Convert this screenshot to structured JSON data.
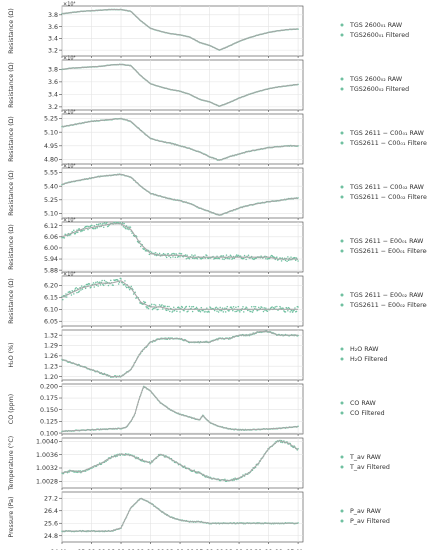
{
  "chart_data": {
    "type": "line",
    "x_ticks": [
      "04-May",
      "03:00:00",
      "06:00:00",
      "09:00:00",
      "12:00:00",
      "15:00:00",
      "18:00:00",
      "21:00:00",
      "05-May"
    ],
    "x_sublabel": "May 2018",
    "colors": {
      "raw": "#6fc0a0",
      "filtered": "#a8a8a8"
    },
    "panels": [
      {
        "ylabel": "Resistance (Ω)",
        "exponent": "×10⁴",
        "yticks": [
          "3.2",
          "3.4",
          "3.6",
          "3.8"
        ],
        "ylim": [
          3.1,
          3.95
        ],
        "legend": [
          "TGS 2600₀₁ RAW",
          "TGS2600₀₁ Filtered"
        ],
        "noise": 0.003,
        "series_x": [
          0,
          1,
          2,
          3,
          4,
          5,
          6,
          7,
          8,
          9,
          10,
          11,
          12,
          13,
          14,
          15,
          16,
          17,
          18,
          19,
          20,
          21,
          22,
          23,
          24
        ],
        "series_y": [
          3.82,
          3.84,
          3.86,
          3.87,
          3.88,
          3.89,
          3.89,
          3.86,
          3.7,
          3.57,
          3.52,
          3.48,
          3.46,
          3.42,
          3.33,
          3.28,
          3.2,
          3.27,
          3.35,
          3.41,
          3.46,
          3.5,
          3.53,
          3.55,
          3.56
        ]
      },
      {
        "ylabel": "Resistance (Ω)",
        "exponent": "×10⁴",
        "yticks": [
          "3.2",
          "3.4",
          "3.6",
          "3.8"
        ],
        "ylim": [
          3.15,
          3.95
        ],
        "legend": [
          "TGS 2600₀₂ RAW",
          "TGS2600₀₂ Filtered"
        ],
        "noise": 0.003,
        "series_x": [
          0,
          1,
          2,
          3,
          4,
          5,
          6,
          7,
          8,
          9,
          10,
          11,
          12,
          13,
          14,
          15,
          16,
          17,
          18,
          19,
          20,
          21,
          22,
          23,
          24
        ],
        "series_y": [
          3.8,
          3.82,
          3.83,
          3.84,
          3.85,
          3.87,
          3.88,
          3.86,
          3.7,
          3.57,
          3.52,
          3.48,
          3.45,
          3.4,
          3.32,
          3.28,
          3.21,
          3.27,
          3.34,
          3.4,
          3.45,
          3.49,
          3.52,
          3.54,
          3.56
        ]
      },
      {
        "ylabel": "Resistance (Ω)",
        "exponent": "×10⁴",
        "yticks": [
          "4.80",
          "4.95",
          "5.10",
          "5.25"
        ],
        "ylim": [
          4.75,
          5.3
        ],
        "legend": [
          "TGS 2611 − C00₀₁ RAW",
          "TGS2611 − C00₀₁ Filtered"
        ],
        "noise": 0.004,
        "series_x": [
          0,
          1,
          2,
          3,
          4,
          5,
          6,
          7,
          8,
          9,
          10,
          11,
          12,
          13,
          14,
          15,
          16,
          17,
          18,
          19,
          20,
          21,
          22,
          23,
          24
        ],
        "series_y": [
          5.16,
          5.18,
          5.2,
          5.22,
          5.23,
          5.24,
          5.25,
          5.22,
          5.12,
          5.03,
          5.0,
          4.98,
          4.95,
          4.92,
          4.88,
          4.83,
          4.79,
          4.83,
          4.86,
          4.89,
          4.91,
          4.93,
          4.94,
          4.95,
          4.95
        ]
      },
      {
        "ylabel": "Resistance (Ω)",
        "exponent": "×10⁴",
        "yticks": [
          "5.10",
          "5.25",
          "5.40",
          "5.55"
        ],
        "ylim": [
          5.05,
          5.6
        ],
        "legend": [
          "TGS 2611 − C00₀₂ RAW",
          "TGS2611 − C00₀₂ Filtered"
        ],
        "noise": 0.004,
        "series_x": [
          0,
          1,
          2,
          3,
          4,
          5,
          6,
          7,
          8,
          9,
          10,
          11,
          12,
          13,
          14,
          15,
          16,
          17,
          18,
          19,
          20,
          21,
          22,
          23,
          24
        ],
        "series_y": [
          5.42,
          5.45,
          5.47,
          5.49,
          5.51,
          5.52,
          5.53,
          5.5,
          5.4,
          5.32,
          5.29,
          5.26,
          5.24,
          5.21,
          5.16,
          5.12,
          5.08,
          5.12,
          5.16,
          5.19,
          5.21,
          5.23,
          5.24,
          5.26,
          5.27
        ]
      },
      {
        "ylabel": "Resistance (Ω)",
        "exponent": "×10⁴",
        "yticks": [
          "5.88",
          "5.94",
          "6.00",
          "6.06",
          "6.12"
        ],
        "ylim": [
          5.87,
          6.14
        ],
        "legend": [
          "TGS 2611 − E00₀₁ RAW",
          "TGS2611 − E00₀₁ Filtered"
        ],
        "noise": 0.012,
        "series_x": [
          0,
          1,
          2,
          3,
          4,
          5,
          6,
          7,
          8,
          9,
          10,
          11,
          12,
          13,
          14,
          15,
          16,
          17,
          18,
          19,
          20,
          21,
          22,
          23,
          24
        ],
        "series_y": [
          6.06,
          6.08,
          6.1,
          6.11,
          6.12,
          6.13,
          6.13,
          6.1,
          6.02,
          5.97,
          5.96,
          5.96,
          5.96,
          5.95,
          5.95,
          5.95,
          5.95,
          5.95,
          5.95,
          5.95,
          5.95,
          5.95,
          5.94,
          5.94,
          5.94
        ]
      },
      {
        "ylabel": "Resistance (Ω)",
        "exponent": "×10⁴",
        "yticks": [
          "6.05",
          "6.10",
          "6.15",
          "6.20"
        ],
        "ylim": [
          6.03,
          6.24
        ],
        "legend": [
          "TGS 2611 − E00₀₂ RAW",
          "TGS2611 − E00₀₂ Filtered"
        ],
        "noise": 0.012,
        "series_x": [
          0,
          1,
          2,
          3,
          4,
          5,
          6,
          7,
          8,
          9,
          10,
          11,
          12,
          13,
          14,
          15,
          16,
          17,
          18,
          19,
          20,
          21,
          22,
          23,
          24
        ],
        "series_y": [
          6.15,
          6.17,
          6.19,
          6.2,
          6.21,
          6.21,
          6.22,
          6.19,
          6.13,
          6.11,
          6.11,
          6.1,
          6.1,
          6.1,
          6.1,
          6.1,
          6.1,
          6.1,
          6.1,
          6.1,
          6.1,
          6.1,
          6.1,
          6.1,
          6.1
        ]
      },
      {
        "ylabel": "H₂O (%)",
        "exponent": "",
        "yticks": [
          "1.20",
          "1.23",
          "1.26",
          "1.29",
          "1.32"
        ],
        "ylim": [
          1.19,
          1.335
        ],
        "legend": [
          "H₂O RAW",
          "H₂O Filtered"
        ],
        "noise": 0.002,
        "series_x": [
          0,
          1,
          2,
          3,
          4,
          5,
          6,
          7,
          8,
          9,
          10,
          11,
          12,
          13,
          14,
          15,
          16,
          17,
          18,
          19,
          20,
          21,
          22,
          23,
          24
        ],
        "series_y": [
          1.25,
          1.24,
          1.23,
          1.22,
          1.21,
          1.2,
          1.2,
          1.22,
          1.27,
          1.3,
          1.31,
          1.31,
          1.31,
          1.3,
          1.3,
          1.3,
          1.31,
          1.31,
          1.32,
          1.32,
          1.33,
          1.33,
          1.32,
          1.32,
          1.32
        ]
      },
      {
        "ylabel": "CO (ppm)",
        "exponent": "",
        "yticks": [
          "0.100",
          "0.125",
          "0.150",
          "0.175",
          "0.200"
        ],
        "ylim": [
          0.098,
          0.205
        ],
        "legend": [
          "CO RAW",
          "CO Filtered"
        ],
        "noise": 0.0008,
        "series_x": [
          0,
          1,
          2,
          3,
          4,
          5,
          6,
          6.5,
          7,
          7.4,
          7.8,
          8.3,
          9,
          10,
          11,
          12,
          13,
          14,
          14.3,
          15,
          16,
          17,
          18,
          19,
          20,
          21,
          22,
          23,
          24
        ],
        "series_y": [
          0.104,
          0.105,
          0.106,
          0.107,
          0.108,
          0.109,
          0.11,
          0.112,
          0.125,
          0.14,
          0.17,
          0.2,
          0.19,
          0.165,
          0.15,
          0.14,
          0.134,
          0.128,
          0.138,
          0.123,
          0.114,
          0.109,
          0.107,
          0.107,
          0.108,
          0.109,
          0.11,
          0.112,
          0.114
        ]
      },
      {
        "ylabel": "Temperature (°C)",
        "exponent": "",
        "yticks": [
          "1.0028",
          "1.0032",
          "1.0036",
          "1.0040"
        ],
        "ylim": [
          1.0026,
          1.0041
        ],
        "legend": [
          "T_av RAW",
          "T_av Filtered"
        ],
        "noise": 3e-05,
        "series_x": [
          0,
          1,
          2,
          3,
          4,
          5,
          6,
          7,
          8,
          9,
          10,
          11,
          12,
          13,
          14,
          15,
          16,
          17,
          18,
          19,
          20,
          21,
          22,
          23,
          24
        ],
        "series_y": [
          1.00305,
          1.00312,
          1.00308,
          1.00322,
          1.00334,
          1.00352,
          1.00362,
          1.00358,
          1.00345,
          1.00335,
          1.00362,
          1.00348,
          1.0033,
          1.00315,
          1.00305,
          1.0029,
          1.00285,
          1.00282,
          1.0029,
          1.00305,
          1.00335,
          1.00378,
          1.00402,
          1.00395,
          1.00375
        ]
      },
      {
        "ylabel": "Pressure (Pa)",
        "exponent": "",
        "yticks": [
          "24.8",
          "25.6",
          "26.4",
          "27.2"
        ],
        "ylim": [
          24.4,
          27.6
        ],
        "legend": [
          "P_av RAW",
          "P_av Filtered"
        ],
        "noise": 0.03,
        "series_x": [
          0,
          1,
          2,
          3,
          4,
          5,
          6,
          7,
          8,
          9,
          10,
          11,
          12,
          13,
          14,
          15,
          16,
          17,
          18,
          19,
          20,
          21,
          22,
          23,
          24
        ],
        "series_y": [
          25.1,
          25.1,
          25.1,
          25.1,
          25.1,
          25.1,
          25.3,
          26.6,
          27.2,
          26.9,
          26.4,
          26.0,
          25.8,
          25.7,
          25.7,
          25.6,
          25.6,
          25.6,
          25.6,
          25.6,
          25.6,
          25.6,
          25.6,
          25.6,
          25.6
        ]
      }
    ]
  }
}
